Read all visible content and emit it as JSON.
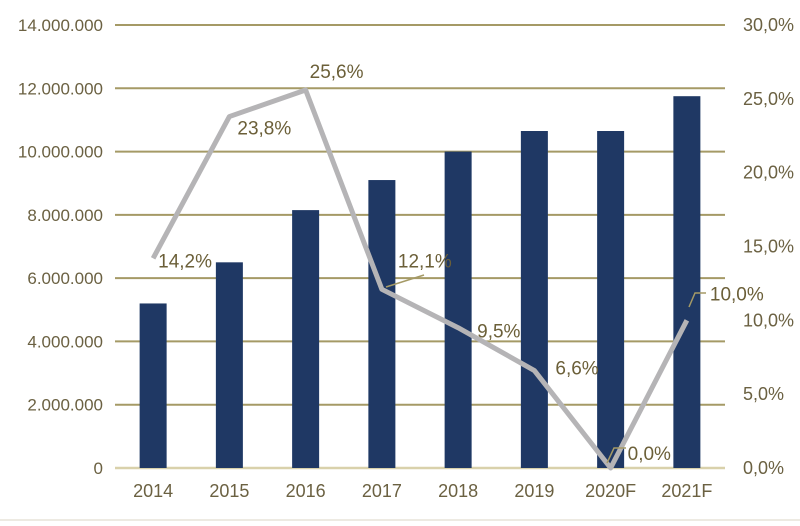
{
  "page": {
    "background": "#ffffff"
  },
  "colors": {
    "bar": "#1f3864",
    "line": "#b5b4b6",
    "gridline": "#a59a66",
    "baseline": "#d9d1ab",
    "axis_text": "#6b6142",
    "data_label_text": "#6b5f38",
    "leader_line": "#a59a66",
    "bottom_divider": "#e7e3d8"
  },
  "chart_data": {
    "type": "bar",
    "subtype": "combo-bar-line-dual-axis",
    "title": "",
    "xlabel": "",
    "ylabel_left": "",
    "ylabel_right": "",
    "grid": "horizontal",
    "legend": "none",
    "categories": [
      "2014",
      "2015",
      "2016",
      "2017",
      "2018",
      "2019",
      "2020F",
      "2021F"
    ],
    "series": [
      {
        "name": "volume-bars",
        "type": "bar",
        "axis": "left",
        "values": [
          5200000,
          6500000,
          8150000,
          9100000,
          10000000,
          10650000,
          10650000,
          11750000
        ]
      },
      {
        "name": "growth-line",
        "type": "line",
        "axis": "right",
        "values": [
          14.2,
          23.8,
          25.6,
          12.1,
          9.5,
          6.6,
          0.0,
          10.0
        ],
        "point_labels": [
          "14,2%",
          "23,8%",
          "25,6%",
          "12,1%",
          "9,5%",
          "6,6%",
          "0,0%",
          "10,0%"
        ]
      }
    ],
    "left_axis": {
      "min": 0,
      "max": 14000000,
      "tick_labels_top_to_bottom": [
        "14.000.000",
        "12.000.000",
        "10.000.000",
        "8.000.000",
        "6.000.000",
        "4.000.000",
        "2.000.000",
        "0"
      ]
    },
    "right_axis": {
      "min": 0,
      "max": 30,
      "tick_labels_top_to_bottom": [
        "30,0%",
        "25,0%",
        "20,0%",
        "15,0%",
        "10,0%",
        "5,0%",
        "0,0%"
      ]
    }
  }
}
